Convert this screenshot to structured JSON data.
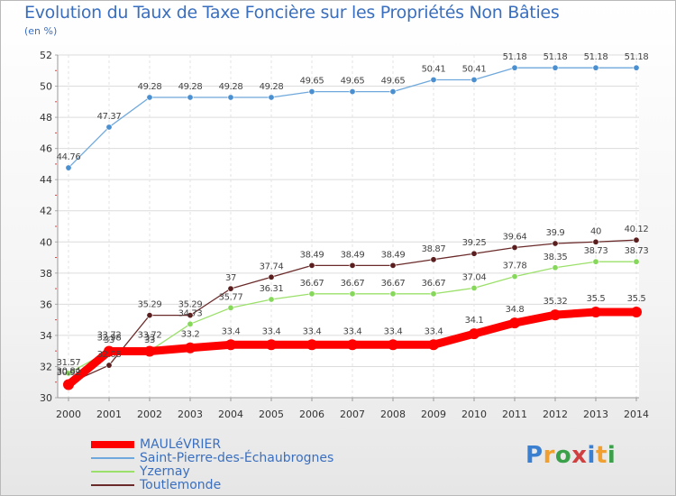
{
  "chart_data": {
    "type": "line",
    "title": "Evolution du Taux de Taxe Foncière sur les Propriétés Non Bâties",
    "ylabel": "(en %)",
    "xlabel": "",
    "ylim": [
      30,
      52
    ],
    "yticks": [
      30,
      32,
      34,
      36,
      38,
      40,
      42,
      44,
      46,
      48,
      50,
      52
    ],
    "x": [
      "2000",
      "2001",
      "2002",
      "2003",
      "2004",
      "2005",
      "2006",
      "2007",
      "2008",
      "2009",
      "2010",
      "2011",
      "2012",
      "2013",
      "2014"
    ],
    "grid": true,
    "series": [
      {
        "name": "MAULéVRIER",
        "color": "#ff0000",
        "values": [
          30.84,
          32.98,
          32.98,
          33.2,
          33.4,
          33.4,
          33.4,
          33.4,
          33.4,
          33.4,
          34.1,
          34.8,
          35.32,
          35.5,
          35.5
        ],
        "labels": [
          "30.84",
          "32.98",
          "33",
          "33.2",
          "33.4",
          "33.4",
          "33.4",
          "33.4",
          "33.4",
          "33.4",
          "34.1",
          "34.8",
          "35.32",
          "35.5",
          "35.5"
        ]
      },
      {
        "name": "Saint-Pierre-des-Échaubrognes",
        "color": "#6fa8dc",
        "values": [
          44.76,
          47.37,
          49.28,
          49.28,
          49.28,
          49.28,
          49.65,
          49.65,
          49.65,
          50.41,
          50.41,
          51.18,
          51.18,
          51.18,
          51.18
        ],
        "labels": [
          "44.76",
          "47.37",
          "49.28",
          "49.28",
          "49.28",
          "49.28",
          "49.65",
          "49.65",
          "49.65",
          "50.41",
          "50.41",
          "51.18",
          "51.18",
          "51.18",
          "51.18"
        ]
      },
      {
        "name": "Yzernay",
        "color": "#9be06a",
        "values": [
          31.57,
          33,
          33,
          34.73,
          35.77,
          36.31,
          36.67,
          36.67,
          36.67,
          36.67,
          37.04,
          37.78,
          38.35,
          38.73,
          38.73
        ],
        "labels": [
          "31.57",
          "33",
          "33",
          "34.73",
          "35.77",
          "36.31",
          "36.67",
          "36.67",
          "36.67",
          "36.67",
          "37.04",
          "37.78",
          "38.35",
          "38.73",
          "38.73"
        ]
      },
      {
        "name": "Toutlemonde",
        "color": "#6b2a2a",
        "values": [
          30.92,
          32.08,
          35.29,
          35.29,
          37,
          37.74,
          38.49,
          38.49,
          38.49,
          38.87,
          39.25,
          39.64,
          39.9,
          40,
          40.12
        ],
        "labels": [
          "30.92",
          "32.08",
          "35.29",
          "35.29",
          "37",
          "37.74",
          "38.49",
          "38.49",
          "38.49",
          "38.87",
          "39.25",
          "39.64",
          "39.9",
          "40",
          "40.12"
        ]
      }
    ],
    "extra_labels": [
      "33.72",
      "33.72"
    ]
  },
  "logo": {
    "text": "Proxiti"
  }
}
